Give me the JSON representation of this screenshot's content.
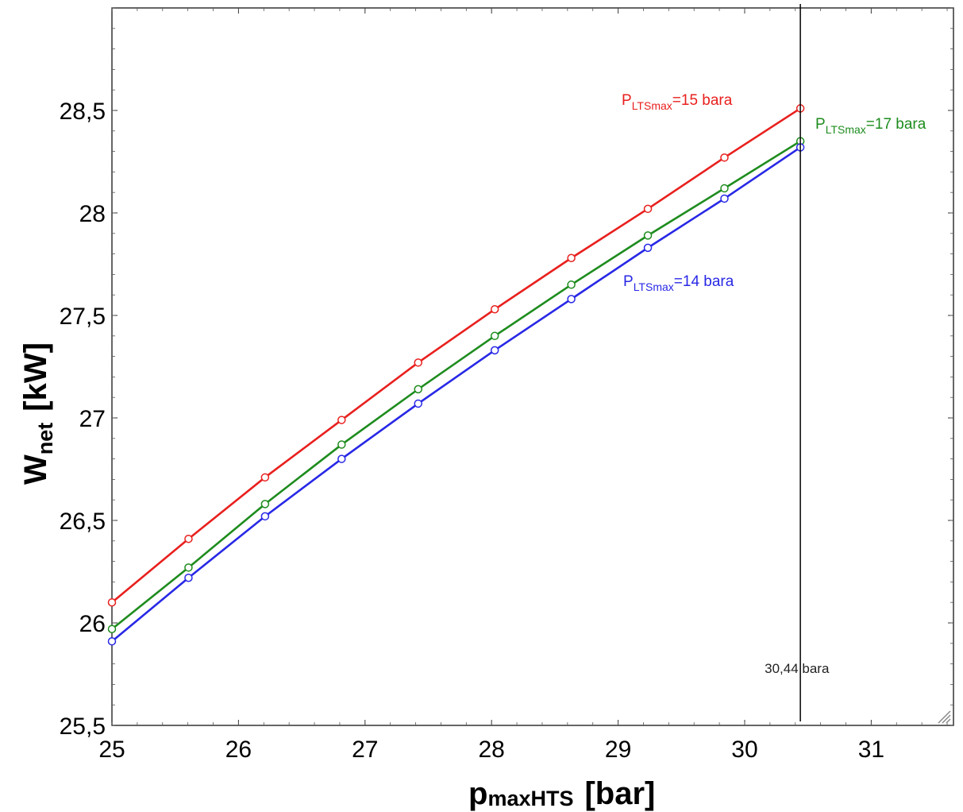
{
  "chart_data": {
    "type": "line",
    "xlabel": {
      "main": "p",
      "sub": "maxHTS",
      "unit": "[bar]"
    },
    "ylabel": {
      "main": "W",
      "sub": "net",
      "unit": "[kW]"
    },
    "xlim": [
      25,
      31.65
    ],
    "ylim": [
      25.5,
      29
    ],
    "x_ticks": [
      25,
      26,
      27,
      28,
      29,
      30,
      31
    ],
    "x_tick_labels": [
      "25",
      "26",
      "27",
      "28",
      "29",
      "30",
      "31"
    ],
    "y_ticks": [
      25.5,
      26,
      26.5,
      27,
      27.5,
      28,
      28.5
    ],
    "y_tick_labels": [
      "25,5",
      "26",
      "26,5",
      "27",
      "27,5",
      "28",
      "28,5"
    ],
    "grid": false,
    "x": [
      25,
      25.605,
      26.21,
      26.815,
      27.42,
      28.025,
      28.63,
      29.235,
      29.84,
      30.44
    ],
    "series": [
      {
        "label_main": "P",
        "label_sub": "LTSmax",
        "label_rest": "=15 bara",
        "color": "#e8201e",
        "values": [
          26.1,
          26.41,
          26.71,
          26.99,
          27.27,
          27.53,
          27.78,
          28.02,
          28.27,
          28.51
        ]
      },
      {
        "label_main": "P",
        "label_sub": "LTSmax",
        "label_rest": "=17 bara",
        "color": "#1e8c1e",
        "values": [
          25.97,
          26.27,
          26.58,
          26.87,
          27.14,
          27.4,
          27.65,
          27.89,
          28.12,
          28.35
        ]
      },
      {
        "label_main": "P",
        "label_sub": "LTSmax",
        "label_rest": "=14 bara",
        "color": "#2828e6",
        "values": [
          25.91,
          26.22,
          26.52,
          26.8,
          27.07,
          27.33,
          27.58,
          27.83,
          28.07,
          28.32
        ]
      }
    ],
    "vline": {
      "x": 30.44,
      "label": "30,44 bara",
      "color": "#000000"
    }
  }
}
